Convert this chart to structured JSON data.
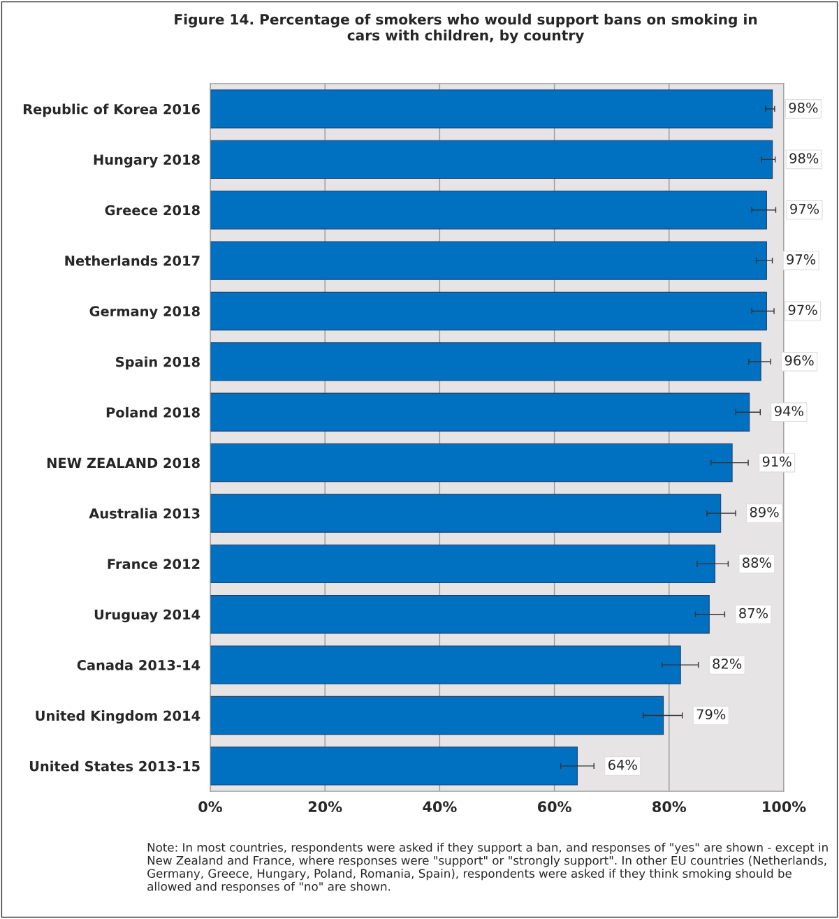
{
  "chart_data": {
    "type": "bar",
    "orientation": "horizontal",
    "title": "Figure 14. Percentage of smokers who would support bans on smoking in\ncars with children, by country",
    "categories": [
      "Republic of Korea 2016",
      "Hungary 2018",
      "Greece 2018",
      "Netherlands 2017",
      "Germany 2018",
      "Spain 2018",
      "Poland 2018",
      "NEW ZEALAND 2018",
      "Australia 2013",
      "France 2012",
      "Uruguay 2014",
      "Canada 2013-14",
      "United Kingdom 2014",
      "United States 2013-15"
    ],
    "values": [
      98,
      98,
      97,
      97,
      97,
      96,
      94,
      91,
      89,
      88,
      87,
      82,
      79,
      64
    ],
    "value_labels": [
      "98%",
      "98%",
      "97%",
      "97%",
      "97%",
      "96%",
      "94%",
      "91%",
      "89%",
      "88%",
      "87%",
      "82%",
      "79%",
      "64%"
    ],
    "errors": [
      [
        96.8,
        98.4
      ],
      [
        96.1,
        98.5
      ],
      [
        94.4,
        98.6
      ],
      [
        95.2,
        98.0
      ],
      [
        94.4,
        98.3
      ],
      [
        93.9,
        97.7
      ],
      [
        91.6,
        95.9
      ],
      [
        87.3,
        93.8
      ],
      [
        86.6,
        91.6
      ],
      [
        84.9,
        90.3
      ],
      [
        84.6,
        89.7
      ],
      [
        78.8,
        85.1
      ],
      [
        75.5,
        82.3
      ],
      [
        61.1,
        66.9
      ]
    ],
    "color": "#0070c0",
    "xlim": [
      0,
      100
    ],
    "xticks": [
      {
        "value": 0,
        "label": "0%"
      },
      {
        "value": 20,
        "label": "20%"
      },
      {
        "value": 40,
        "label": "40%"
      },
      {
        "value": 60,
        "label": "60%"
      },
      {
        "value": 80,
        "label": "80%"
      },
      {
        "value": 100,
        "label": "100%"
      }
    ],
    "grid": "x",
    "legend": false,
    "annotations": [
      "Note: In most countries, respondents were asked if they support a ban, and responses of \"yes\" are shown - except in New Zealand and France, where responses were \"support\" or \"strongly support\". In other EU countries (Netherlands, Germany, Greece, Hungary, Poland, Romania, Spain), respondents were asked if they think smoking should be allowed and responses of \"no\" are shown."
    ]
  }
}
